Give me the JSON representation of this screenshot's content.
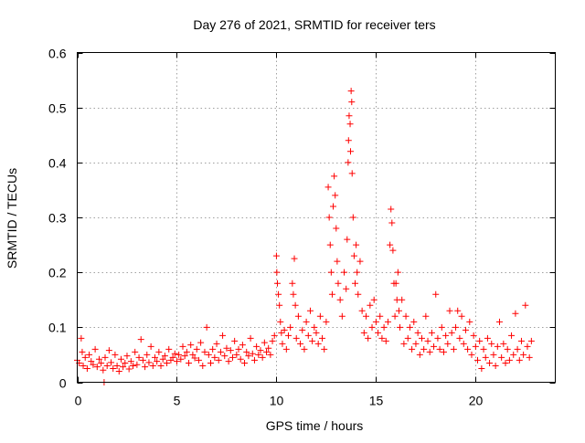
{
  "chart_data": {
    "type": "scatter",
    "title": "Day 276 of 2021, SRMTID for receiver ters",
    "xlabel": "GPS time / hours",
    "ylabel": "SRMTID / TECUs",
    "xlim": [
      0,
      24
    ],
    "ylim": [
      0,
      0.6
    ],
    "xticks": [
      0,
      5,
      10,
      15,
      20
    ],
    "xtick_labels": [
      "0",
      "5",
      "10",
      "15",
      "20"
    ],
    "yticks": [
      0,
      0.1,
      0.2,
      0.3,
      0.4,
      0.5,
      0.6
    ],
    "ytick_labels": [
      "0",
      "0.1",
      "0.2",
      "0.3",
      "0.4",
      "0.5",
      "0.6"
    ],
    "grid": true,
    "marker": "+",
    "color": "#ff0000",
    "series": [
      {
        "name": "SRMTID",
        "points": [
          [
            0.0,
            0.04
          ],
          [
            0.1,
            0.035
          ],
          [
            0.2,
            0.08
          ],
          [
            0.25,
            0.055
          ],
          [
            0.3,
            0.03
          ],
          [
            0.4,
            0.045
          ],
          [
            0.5,
            0.025
          ],
          [
            0.6,
            0.05
          ],
          [
            0.7,
            0.038
          ],
          [
            0.8,
            0.032
          ],
          [
            0.9,
            0.06
          ],
          [
            1.0,
            0.028
          ],
          [
            1.1,
            0.042
          ],
          [
            1.2,
            0.035
          ],
          [
            1.3,
            0.022
          ],
          [
            1.35,
            0.0
          ],
          [
            1.4,
            0.045
          ],
          [
            1.5,
            0.03
          ],
          [
            1.6,
            0.058
          ],
          [
            1.7,
            0.036
          ],
          [
            1.8,
            0.025
          ],
          [
            1.9,
            0.05
          ],
          [
            2.0,
            0.03
          ],
          [
            2.1,
            0.02
          ],
          [
            2.2,
            0.042
          ],
          [
            2.3,
            0.028
          ],
          [
            2.4,
            0.035
          ],
          [
            2.5,
            0.048
          ],
          [
            2.6,
            0.024
          ],
          [
            2.7,
            0.038
          ],
          [
            2.8,
            0.03
          ],
          [
            2.9,
            0.055
          ],
          [
            3.0,
            0.032
          ],
          [
            3.1,
            0.045
          ],
          [
            3.2,
            0.078
          ],
          [
            3.3,
            0.04
          ],
          [
            3.4,
            0.028
          ],
          [
            3.5,
            0.05
          ],
          [
            3.6,
            0.036
          ],
          [
            3.7,
            0.065
          ],
          [
            3.8,
            0.03
          ],
          [
            3.9,
            0.045
          ],
          [
            4.0,
            0.038
          ],
          [
            4.1,
            0.055
          ],
          [
            4.2,
            0.03
          ],
          [
            4.3,
            0.042
          ],
          [
            4.4,
            0.048
          ],
          [
            4.5,
            0.035
          ],
          [
            4.6,
            0.06
          ],
          [
            4.7,
            0.04
          ],
          [
            4.8,
            0.045
          ],
          [
            4.9,
            0.052
          ],
          [
            5.0,
            0.038
          ],
          [
            5.1,
            0.05
          ],
          [
            5.2,
            0.042
          ],
          [
            5.3,
            0.065
          ],
          [
            5.4,
            0.048
          ],
          [
            5.5,
            0.055
          ],
          [
            5.6,
            0.035
          ],
          [
            5.7,
            0.068
          ],
          [
            5.8,
            0.05
          ],
          [
            5.9,
            0.044
          ],
          [
            6.0,
            0.06
          ],
          [
            6.1,
            0.04
          ],
          [
            6.2,
            0.072
          ],
          [
            6.3,
            0.03
          ],
          [
            6.4,
            0.055
          ],
          [
            6.5,
            0.1
          ],
          [
            6.6,
            0.05
          ],
          [
            6.7,
            0.035
          ],
          [
            6.8,
            0.06
          ],
          [
            6.9,
            0.045
          ],
          [
            7.0,
            0.07
          ],
          [
            7.1,
            0.04
          ],
          [
            7.2,
            0.055
          ],
          [
            7.3,
            0.085
          ],
          [
            7.4,
            0.048
          ],
          [
            7.5,
            0.062
          ],
          [
            7.6,
            0.038
          ],
          [
            7.7,
            0.058
          ],
          [
            7.8,
            0.045
          ],
          [
            7.9,
            0.075
          ],
          [
            8.0,
            0.05
          ],
          [
            8.1,
            0.06
          ],
          [
            8.2,
            0.042
          ],
          [
            8.3,
            0.068
          ],
          [
            8.4,
            0.035
          ],
          [
            8.5,
            0.055
          ],
          [
            8.6,
            0.048
          ],
          [
            8.7,
            0.08
          ],
          [
            8.8,
            0.052
          ],
          [
            8.9,
            0.04
          ],
          [
            9.0,
            0.065
          ],
          [
            9.1,
            0.05
          ],
          [
            9.2,
            0.058
          ],
          [
            9.3,
            0.045
          ],
          [
            9.4,
            0.072
          ],
          [
            9.5,
            0.055
          ],
          [
            9.6,
            0.062
          ],
          [
            9.7,
            0.05
          ],
          [
            9.8,
            0.075
          ],
          [
            9.9,
            0.085
          ],
          [
            10.0,
            0.23
          ],
          [
            10.02,
            0.2
          ],
          [
            10.05,
            0.18
          ],
          [
            10.1,
            0.16
          ],
          [
            10.15,
            0.14
          ],
          [
            10.2,
            0.11
          ],
          [
            10.25,
            0.09
          ],
          [
            10.3,
            0.07
          ],
          [
            10.4,
            0.095
          ],
          [
            10.5,
            0.06
          ],
          [
            10.6,
            0.085
          ],
          [
            10.7,
            0.1
          ],
          [
            10.8,
            0.18
          ],
          [
            10.85,
            0.16
          ],
          [
            10.9,
            0.225
          ],
          [
            10.95,
            0.14
          ],
          [
            11.0,
            0.08
          ],
          [
            11.1,
            0.12
          ],
          [
            11.2,
            0.07
          ],
          [
            11.3,
            0.095
          ],
          [
            11.4,
            0.06
          ],
          [
            11.5,
            0.11
          ],
          [
            11.6,
            0.085
          ],
          [
            11.7,
            0.13
          ],
          [
            11.8,
            0.075
          ],
          [
            11.9,
            0.1
          ],
          [
            12.0,
            0.09
          ],
          [
            12.1,
            0.07
          ],
          [
            12.2,
            0.12
          ],
          [
            12.3,
            0.08
          ],
          [
            12.4,
            0.06
          ],
          [
            12.5,
            0.11
          ],
          [
            12.6,
            0.355
          ],
          [
            12.65,
            0.3
          ],
          [
            12.7,
            0.25
          ],
          [
            12.75,
            0.2
          ],
          [
            12.8,
            0.16
          ],
          [
            12.85,
            0.32
          ],
          [
            12.9,
            0.375
          ],
          [
            12.95,
            0.34
          ],
          [
            13.0,
            0.28
          ],
          [
            13.05,
            0.22
          ],
          [
            13.1,
            0.18
          ],
          [
            13.2,
            0.15
          ],
          [
            13.3,
            0.12
          ],
          [
            13.4,
            0.2
          ],
          [
            13.5,
            0.17
          ],
          [
            13.55,
            0.26
          ],
          [
            13.6,
            0.4
          ],
          [
            13.62,
            0.44
          ],
          [
            13.65,
            0.485
          ],
          [
            13.7,
            0.47
          ],
          [
            13.72,
            0.42
          ],
          [
            13.75,
            0.53
          ],
          [
            13.78,
            0.51
          ],
          [
            13.8,
            0.38
          ],
          [
            13.85,
            0.3
          ],
          [
            13.9,
            0.23
          ],
          [
            13.95,
            0.18
          ],
          [
            14.0,
            0.25
          ],
          [
            14.05,
            0.2
          ],
          [
            14.1,
            0.16
          ],
          [
            14.2,
            0.22
          ],
          [
            14.3,
            0.13
          ],
          [
            14.4,
            0.09
          ],
          [
            14.5,
            0.12
          ],
          [
            14.6,
            0.08
          ],
          [
            14.7,
            0.14
          ],
          [
            14.8,
            0.1
          ],
          [
            14.9,
            0.15
          ],
          [
            15.0,
            0.11
          ],
          [
            15.1,
            0.09
          ],
          [
            15.2,
            0.12
          ],
          [
            15.3,
            0.08
          ],
          [
            15.4,
            0.1
          ],
          [
            15.5,
            0.075
          ],
          [
            15.6,
            0.11
          ],
          [
            15.7,
            0.25
          ],
          [
            15.75,
            0.315
          ],
          [
            15.8,
            0.29
          ],
          [
            15.85,
            0.24
          ],
          [
            15.9,
            0.18
          ],
          [
            15.95,
            0.12
          ],
          [
            16.0,
            0.18
          ],
          [
            16.05,
            0.15
          ],
          [
            16.1,
            0.2
          ],
          [
            16.15,
            0.13
          ],
          [
            16.2,
            0.1
          ],
          [
            16.3,
            0.15
          ],
          [
            16.4,
            0.07
          ],
          [
            16.5,
            0.12
          ],
          [
            16.6,
            0.08
          ],
          [
            16.7,
            0.1
          ],
          [
            16.8,
            0.06
          ],
          [
            16.9,
            0.11
          ],
          [
            17.0,
            0.07
          ],
          [
            17.1,
            0.09
          ],
          [
            17.2,
            0.05
          ],
          [
            17.3,
            0.08
          ],
          [
            17.4,
            0.06
          ],
          [
            17.5,
            0.12
          ],
          [
            17.6,
            0.075
          ],
          [
            17.7,
            0.055
          ],
          [
            17.8,
            0.09
          ],
          [
            17.9,
            0.065
          ],
          [
            18.0,
            0.16
          ],
          [
            18.1,
            0.08
          ],
          [
            18.2,
            0.06
          ],
          [
            18.3,
            0.1
          ],
          [
            18.4,
            0.055
          ],
          [
            18.5,
            0.085
          ],
          [
            18.6,
            0.07
          ],
          [
            18.7,
            0.13
          ],
          [
            18.8,
            0.09
          ],
          [
            18.9,
            0.06
          ],
          [
            19.0,
            0.1
          ],
          [
            19.1,
            0.13
          ],
          [
            19.2,
            0.08
          ],
          [
            19.3,
            0.12
          ],
          [
            19.4,
            0.07
          ],
          [
            19.5,
            0.095
          ],
          [
            19.6,
            0.06
          ],
          [
            19.7,
            0.11
          ],
          [
            19.8,
            0.05
          ],
          [
            19.9,
            0.085
          ],
          [
            20.0,
            0.065
          ],
          [
            20.1,
            0.04
          ],
          [
            20.2,
            0.075
          ],
          [
            20.3,
            0.025
          ],
          [
            20.4,
            0.06
          ],
          [
            20.5,
            0.045
          ],
          [
            20.6,
            0.08
          ],
          [
            20.7,
            0.035
          ],
          [
            20.8,
            0.07
          ],
          [
            20.9,
            0.05
          ],
          [
            21.0,
            0.03
          ],
          [
            21.1,
            0.065
          ],
          [
            21.2,
            0.11
          ],
          [
            21.3,
            0.045
          ],
          [
            21.4,
            0.07
          ],
          [
            21.5,
            0.035
          ],
          [
            21.6,
            0.06
          ],
          [
            21.7,
            0.04
          ],
          [
            21.8,
            0.085
          ],
          [
            21.9,
            0.05
          ],
          [
            22.0,
            0.125
          ],
          [
            22.1,
            0.06
          ],
          [
            22.2,
            0.04
          ],
          [
            22.3,
            0.075
          ],
          [
            22.4,
            0.05
          ],
          [
            22.5,
            0.14
          ],
          [
            22.6,
            0.065
          ],
          [
            22.7,
            0.045
          ],
          [
            22.8,
            0.075
          ]
        ]
      }
    ]
  }
}
